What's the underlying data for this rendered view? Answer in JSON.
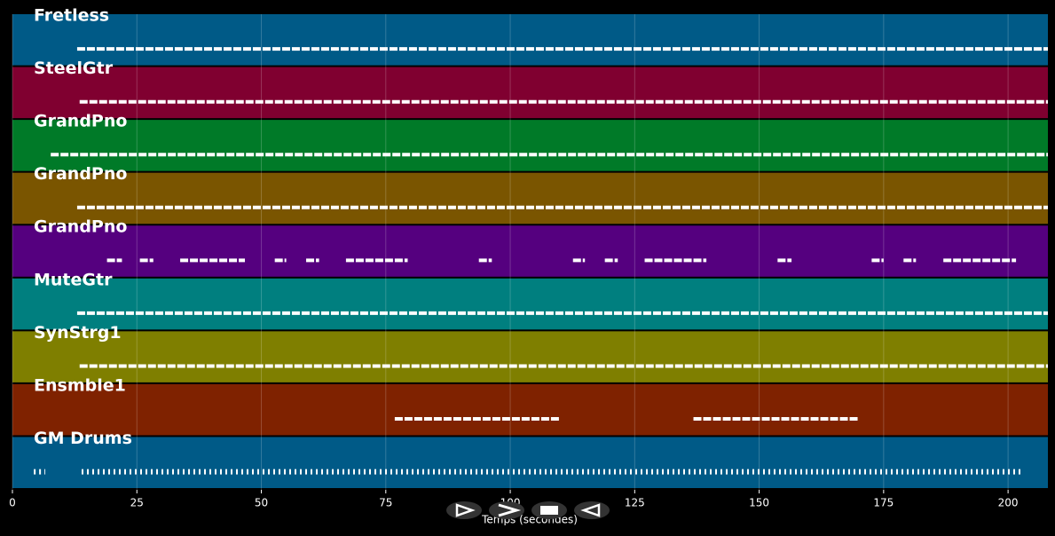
{
  "chart_data": {
    "type": "pianoroll",
    "xlabel": "Temps (secondes)",
    "xlim": [
      0,
      208
    ],
    "xticks": [
      0,
      25,
      50,
      75,
      100,
      125,
      150,
      175,
      200
    ],
    "grid": true,
    "tracks": [
      {
        "name": "Fretless",
        "color": "#005a87",
        "segments": [
          [
            13,
            208
          ]
        ]
      },
      {
        "name": "SteelGtr",
        "color": "#800030",
        "segments": [
          [
            13.5,
            208
          ]
        ]
      },
      {
        "name": "GrandPno",
        "color": "#007a28",
        "segments": [
          [
            7.7,
            208
          ]
        ]
      },
      {
        "name": "GrandPno",
        "color": "#7a5500",
        "segments": [
          [
            13,
            208
          ]
        ]
      },
      {
        "name": "GrandPno",
        "color": "#55007f",
        "segments": [
          [
            19,
            22
          ],
          [
            25.6,
            28.3
          ],
          [
            33.7,
            46.7
          ],
          [
            52.7,
            55
          ],
          [
            59,
            61.6
          ],
          [
            67,
            79.4
          ],
          [
            93.7,
            96.3
          ],
          [
            112.6,
            115
          ],
          [
            119,
            121.6
          ],
          [
            127,
            139.4
          ],
          [
            153.7,
            156.5
          ],
          [
            172.6,
            175
          ],
          [
            179,
            181.5
          ],
          [
            187,
            201.6
          ]
        ]
      },
      {
        "name": "MuteGtr",
        "color": "#007f7f",
        "segments": [
          [
            13,
            208
          ]
        ]
      },
      {
        "name": "SynStrg1",
        "color": "#7f7f00",
        "segments": [
          [
            13.5,
            208
          ]
        ]
      },
      {
        "name": "Ensmble1",
        "color": "#7f2200",
        "segments": [
          [
            76.8,
            110
          ],
          [
            136.8,
            170
          ]
        ]
      },
      {
        "name": "GM Drums",
        "color": "#005a87",
        "segments": [
          [
            4.3,
            6.6
          ],
          [
            13.9,
            202.8
          ]
        ]
      }
    ]
  }
}
